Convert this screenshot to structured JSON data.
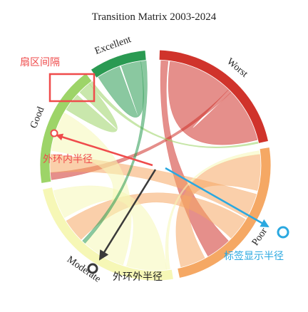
{
  "title": "Transition Matrix 2003-2024",
  "chart_data": {
    "type": "chord",
    "groups": [
      {
        "id": "worst",
        "label": "Worst",
        "color": "#d0332b",
        "start_deg": 2,
        "end_deg": 78
      },
      {
        "id": "poor",
        "label": "Poor",
        "color": "#f5a864",
        "start_deg": 81,
        "end_deg": 168
      },
      {
        "id": "moderate",
        "label": "Moderate",
        "color": "#f6f7b6",
        "start_deg": 171,
        "end_deg": 258
      },
      {
        "id": "good",
        "label": "Good",
        "color": "#9dd468",
        "start_deg": 261,
        "end_deg": 323
      },
      {
        "id": "excellent",
        "label": "Excellent",
        "color": "#2a9a52",
        "start_deg": 326,
        "end_deg": 355
      }
    ],
    "ribbons": [
      {
        "source": "worst",
        "target": "worst",
        "color": "#d0332b",
        "a": [
          8,
          44
        ],
        "b": [
          46,
          76
        ]
      },
      {
        "source": "worst",
        "target": "good",
        "color": "#d0332b",
        "a": [
          44,
          46
        ],
        "b": [
          262,
          266
        ]
      },
      {
        "source": "worst",
        "target": "poor",
        "color": "#d0332b",
        "a": [
          3,
          7
        ],
        "b": [
          136,
          150
        ]
      },
      {
        "source": "poor",
        "target": "poor",
        "color": "#f5a864",
        "a": [
          84,
          104
        ],
        "b": [
          152,
          166
        ]
      },
      {
        "source": "poor",
        "target": "good",
        "color": "#f5a864",
        "a": [
          106,
          120
        ],
        "b": [
          266,
          276
        ]
      },
      {
        "source": "poor",
        "target": "moderate",
        "color": "#f5a864",
        "a": [
          121,
          134
        ],
        "b": [
          225,
          238
        ]
      },
      {
        "source": "moderate",
        "target": "moderate",
        "color": "#f6f7b6",
        "a": [
          174,
          196
        ],
        "b": [
          240,
          256
        ]
      },
      {
        "source": "moderate",
        "target": "good",
        "color": "#f6f7b6",
        "a": [
          198,
          222
        ],
        "b": [
          278,
          300
        ]
      },
      {
        "source": "moderate",
        "target": "poor",
        "color": "#f6f7b6",
        "a": [
          172,
          174
        ],
        "b": [
          82,
          84
        ]
      },
      {
        "source": "good",
        "target": "good",
        "color": "#9dd468",
        "a": [
          302,
          312
        ],
        "b": [
          314,
          321
        ]
      },
      {
        "source": "good",
        "target": "worst",
        "color": "#9dd468",
        "a": [
          321,
          323
        ],
        "b": [
          77,
          78
        ]
      },
      {
        "source": "excellent",
        "target": "excellent",
        "color": "#2a9a52",
        "a": [
          327,
          340
        ],
        "b": [
          341,
          352
        ]
      },
      {
        "source": "excellent",
        "target": "moderate",
        "color": "#2a9a52",
        "a": [
          352,
          355
        ],
        "b": [
          222,
          224
        ]
      }
    ]
  },
  "annotations": {
    "sector_gap": "扇区间隔",
    "outer_ring_inner_radius": "外环内半径",
    "label_display_radius": "标签显示半径",
    "outer_ring_outer_radius": "外环外半径"
  },
  "annotation_colors": {
    "red": "#ef4b4b",
    "blue": "#2aa8e0",
    "dark": "#3a3a3a"
  }
}
